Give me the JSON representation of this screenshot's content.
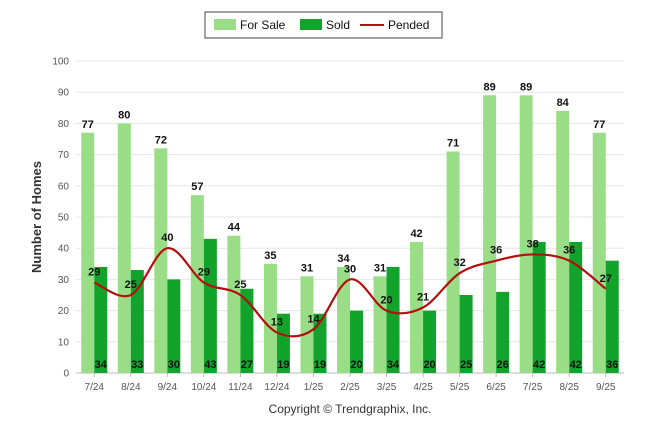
{
  "chart_data": {
    "type": "bar",
    "categories": [
      "7/24",
      "8/24",
      "9/24",
      "10/24",
      "11/24",
      "12/24",
      "1/25",
      "2/25",
      "3/25",
      "4/25",
      "5/25",
      "6/25",
      "7/25",
      "8/25",
      "9/25"
    ],
    "series": [
      {
        "name": "For Sale",
        "type": "bar",
        "color": "#99de86",
        "values": [
          77,
          80,
          72,
          57,
          44,
          35,
          31,
          34,
          31,
          42,
          71,
          89,
          89,
          84,
          77
        ]
      },
      {
        "name": "Sold",
        "type": "bar",
        "color": "#11a32b",
        "values": [
          34,
          33,
          30,
          43,
          27,
          19,
          19,
          20,
          34,
          20,
          25,
          26,
          42,
          42,
          36
        ]
      },
      {
        "name": "Pended",
        "type": "line",
        "color": "#b30f0f",
        "values": [
          29,
          25,
          40,
          29,
          25,
          13,
          14,
          30,
          20,
          21,
          32,
          36,
          38,
          36,
          27
        ]
      }
    ],
    "xlabel": "",
    "ylabel": "Number of Homes",
    "ylim": [
      0,
      100
    ],
    "yticks": [
      0,
      10,
      20,
      30,
      40,
      50,
      60,
      70,
      80,
      90,
      100
    ],
    "grid": true,
    "legend_position": "top-center"
  },
  "credit": "Copyright © Trendgraphix, Inc."
}
